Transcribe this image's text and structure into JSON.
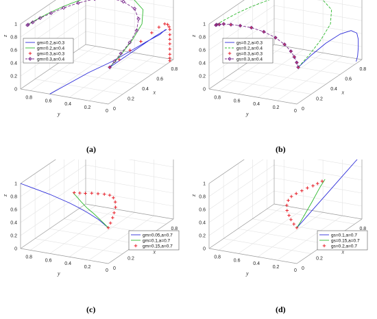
{
  "captions": [
    "(a)",
    "(b)",
    "(c)",
    "(d)"
  ],
  "chart_data": [
    {
      "type": "line3d",
      "panel": "a",
      "xlabel": "x",
      "ylabel": "y",
      "zlabel": "z",
      "xticks": [
        "0",
        "0.2",
        "0.4",
        "0.6",
        "0.8"
      ],
      "yticks": [
        "0",
        "0.2",
        "0.4",
        "0.6",
        "0.8"
      ],
      "zticks": [
        "0",
        "0.2",
        "0.4",
        "0.6",
        "0.8",
        "1"
      ],
      "xlim": [
        0,
        0.9
      ],
      "ylim": [
        0,
        0.9
      ],
      "zlim": [
        0,
        1
      ],
      "grid": true,
      "legend_position": "upper-left",
      "series": [
        {
          "name": "gm=0.2,a=0.3",
          "color": "#2b2bd9",
          "marker": "none",
          "endpoint": [
            0,
            0.6,
            0
          ],
          "x": [
            0,
            0.4,
            0.6,
            0.7,
            0.8,
            0.85,
            0.85,
            0.82,
            0.76,
            0.65,
            0.5,
            0.35,
            0.2,
            0.1,
            0.02
          ],
          "y": [
            0.6,
            0.5,
            0.4,
            0.3,
            0.2,
            0.1,
            0.05,
            0.01,
            0,
            0,
            0,
            0,
            0,
            0,
            0
          ],
          "z": [
            0,
            0.05,
            0.1,
            0.2,
            0.3,
            0.4,
            0.48,
            0.52,
            0.54,
            0.55,
            0.55,
            0.55,
            0.55,
            0.55,
            0.55
          ]
        },
        {
          "name": "gm=0.2,a=0.4",
          "color": "#2db82d",
          "marker": "none",
          "x": [
            0.02,
            0.2,
            0.4,
            0.6,
            0.75,
            0.82,
            0.8,
            0.7,
            0.55,
            0.4,
            0.25,
            0.12,
            0.03,
            0
          ],
          "y": [
            0,
            0.02,
            0.05,
            0.1,
            0.2,
            0.35,
            0.5,
            0.62,
            0.7,
            0.76,
            0.8,
            0.82,
            0.83,
            0.83
          ],
          "z": [
            0.55,
            0.6,
            0.67,
            0.75,
            0.83,
            0.9,
            0.96,
            0.99,
            1,
            1,
            1,
            1,
            1,
            1
          ]
        },
        {
          "name": "gm=0.3,a=0.3",
          "color": "#e8202a",
          "marker": "plus",
          "x": [
            0.02,
            0.15,
            0.3,
            0.45,
            0.6,
            0.7,
            0.78,
            0.82,
            0.84,
            0.85,
            0.85,
            0.85,
            0.85,
            0.85,
            0.85,
            0.85,
            0.85
          ],
          "y": [
            0,
            0,
            0,
            0,
            0,
            0,
            0,
            0,
            0,
            0,
            0,
            0,
            0,
            0,
            0,
            0,
            0
          ],
          "z": [
            0.55,
            0.57,
            0.6,
            0.62,
            0.64,
            0.65,
            0.64,
            0.6,
            0.55,
            0.5,
            0.42,
            0.35,
            0.28,
            0.2,
            0.12,
            0.06,
            0.02
          ]
        },
        {
          "name": "gm=0.3,a=0.4",
          "color": "#7a2a8c",
          "marker": "diamond",
          "dashed": true,
          "x": [
            0.02,
            0.1,
            0.2,
            0.35,
            0.5,
            0.62,
            0.7,
            0.72,
            0.7,
            0.62,
            0.5,
            0.38,
            0.26,
            0.15,
            0.06,
            0.01,
            0
          ],
          "y": [
            0,
            0.01,
            0.02,
            0.04,
            0.08,
            0.15,
            0.25,
            0.38,
            0.5,
            0.6,
            0.68,
            0.74,
            0.78,
            0.81,
            0.82,
            0.83,
            0.83
          ],
          "z": [
            0.55,
            0.58,
            0.62,
            0.67,
            0.73,
            0.8,
            0.87,
            0.93,
            0.97,
            0.99,
            1,
            1,
            1,
            1,
            1,
            1,
            1
          ]
        }
      ]
    },
    {
      "type": "line3d",
      "panel": "b",
      "xlabel": "x",
      "ylabel": "y",
      "zlabel": "z",
      "xticks": [
        "0",
        "0.2",
        "0.4",
        "0.6",
        "0.8"
      ],
      "yticks": [
        "0",
        "0.2",
        "0.4",
        "0.6",
        "0.8"
      ],
      "zticks": [
        "0",
        "0.2",
        "0.4",
        "0.6",
        "0.8",
        "1"
      ],
      "xlim": [
        0,
        0.9
      ],
      "ylim": [
        0,
        0.9
      ],
      "zlim": [
        0,
        1
      ],
      "grid": true,
      "legend_position": "upper-right",
      "series": [
        {
          "name": "gs=0.2,a=0.3",
          "color": "#2b2bd9",
          "marker": "none",
          "x": [
            0.02,
            0.2,
            0.4,
            0.6,
            0.75,
            0.83,
            0.85,
            0.85,
            0.84,
            0.82
          ],
          "y": [
            0,
            0,
            0,
            0,
            0,
            0,
            0,
            0,
            0,
            0
          ],
          "z": [
            0.55,
            0.6,
            0.63,
            0.62,
            0.56,
            0.46,
            0.35,
            0.22,
            0.1,
            0.03
          ]
        },
        {
          "name": "gs=0.2,a=0.4",
          "color": "#2db82d",
          "marker": "none",
          "dashed": true,
          "x": [
            0.02,
            0.2,
            0.4,
            0.6,
            0.75,
            0.82,
            0.8,
            0.7,
            0.55,
            0.4,
            0.25,
            0.12,
            0.03,
            0
          ],
          "y": [
            0,
            0.02,
            0.05,
            0.1,
            0.2,
            0.35,
            0.5,
            0.62,
            0.7,
            0.76,
            0.8,
            0.82,
            0.83,
            0.83
          ],
          "z": [
            0.55,
            0.6,
            0.67,
            0.75,
            0.83,
            0.9,
            0.96,
            0.99,
            1,
            1,
            1,
            1,
            1,
            1
          ]
        },
        {
          "name": "gs=0.3,a=0.3",
          "color": "#e8202a",
          "marker": "plus",
          "x": [
            0.02,
            0.04,
            0.06,
            0.08,
            0.1,
            0.11,
            0.11,
            0.1,
            0.08,
            0.06,
            0.04,
            0.02,
            0.01,
            0
          ],
          "y": [
            0,
            0.03,
            0.07,
            0.12,
            0.2,
            0.3,
            0.42,
            0.54,
            0.64,
            0.72,
            0.78,
            0.81,
            0.83,
            0.83
          ],
          "z": [
            0.55,
            0.6,
            0.66,
            0.72,
            0.79,
            0.86,
            0.92,
            0.96,
            0.98,
            0.99,
            1,
            1,
            1,
            1
          ]
        },
        {
          "name": "gs=0.3,a=0.4",
          "color": "#7a2a8c",
          "marker": "diamond",
          "dashed": true,
          "x": [
            0.02,
            0.04,
            0.06,
            0.08,
            0.1,
            0.11,
            0.11,
            0.1,
            0.08,
            0.06,
            0.04,
            0.02,
            0.01,
            0
          ],
          "y": [
            0,
            0.03,
            0.07,
            0.12,
            0.2,
            0.3,
            0.42,
            0.54,
            0.64,
            0.72,
            0.78,
            0.81,
            0.83,
            0.83
          ],
          "z": [
            0.55,
            0.6,
            0.66,
            0.72,
            0.79,
            0.86,
            0.92,
            0.96,
            0.98,
            0.99,
            1,
            1,
            1,
            1
          ]
        }
      ]
    },
    {
      "type": "line3d",
      "panel": "c",
      "xlabel": "x",
      "ylabel": "y",
      "zlabel": "z",
      "xticks": [
        "0",
        "0.2",
        "0.4",
        "0.6",
        "0.8"
      ],
      "yticks": [
        "0",
        "0.2",
        "0.4",
        "0.6",
        "0.8"
      ],
      "zticks": [
        "0",
        "0.2",
        "0.4",
        "0.6",
        "0.8",
        "1"
      ],
      "xlim": [
        0,
        0.9
      ],
      "ylim": [
        0,
        0.9
      ],
      "zlim": [
        0,
        1
      ],
      "grid": true,
      "legend_position": "lower-right",
      "series": [
        {
          "name": "gm=0.05,a=0.7",
          "color": "#2b2bd9",
          "marker": "none",
          "x": [
            0,
            0,
            0,
            0,
            0,
            0,
            0,
            0,
            0,
            0
          ],
          "y": [
            0,
            0.1,
            0.2,
            0.3,
            0.4,
            0.5,
            0.6,
            0.7,
            0.8,
            0.9
          ],
          "z": [
            0.55,
            0.65,
            0.72,
            0.78,
            0.83,
            0.87,
            0.91,
            0.94,
            0.97,
            1
          ]
        },
        {
          "name": "gm=0.1,a=0.7",
          "color": "#2db82d",
          "marker": "none",
          "x": [
            0,
            0,
            0,
            0,
            0,
            0,
            0,
            0,
            0
          ],
          "y": [
            0,
            0.04,
            0.09,
            0.15,
            0.22,
            0.28,
            0.32,
            0.35,
            0.36
          ],
          "z": [
            0.55,
            0.6,
            0.66,
            0.73,
            0.8,
            0.88,
            0.94,
            0.98,
            1
          ]
        },
        {
          "name": "gm=0.15,a=0.7",
          "color": "#e8202a",
          "marker": "plus",
          "x": [
            0,
            0.03,
            0.06,
            0.08,
            0.1,
            0.11,
            0.11,
            0.1,
            0.08,
            0.06,
            0.04,
            0.02,
            0.01,
            0
          ],
          "y": [
            0,
            0,
            0,
            0,
            0,
            0.01,
            0.03,
            0.06,
            0.1,
            0.15,
            0.2,
            0.25,
            0.3,
            0.35
          ],
          "z": [
            0.55,
            0.6,
            0.66,
            0.72,
            0.79,
            0.86,
            0.92,
            0.96,
            0.98,
            0.99,
            1,
            1,
            1,
            1
          ]
        }
      ]
    },
    {
      "type": "line3d",
      "panel": "d",
      "xlabel": "x",
      "ylabel": "y",
      "zlabel": "z",
      "xticks": [
        "0",
        "0.2",
        "0.4",
        "0.6",
        "0.8"
      ],
      "yticks": [
        "0",
        "0.2",
        "0.4",
        "0.6",
        "0.8"
      ],
      "zticks": [
        "0",
        "0.2",
        "0.4",
        "0.6",
        "0.8",
        "1"
      ],
      "xlim": [
        0,
        0.9
      ],
      "ylim": [
        0,
        0.9
      ],
      "zlim": [
        0,
        1
      ],
      "grid": true,
      "legend_position": "lower-right",
      "series": [
        {
          "name": "gs=0.1,a=0.7",
          "color": "#2b2bd9",
          "marker": "none",
          "x": [
            0,
            0.1,
            0.2,
            0.3,
            0.4,
            0.5,
            0.6,
            0.7,
            0.8,
            0.9
          ],
          "y": [
            0,
            0,
            0,
            0,
            0,
            0,
            0,
            0,
            0,
            0
          ],
          "z": [
            0.55,
            0.6,
            0.65,
            0.7,
            0.75,
            0.8,
            0.85,
            0.9,
            0.95,
            1
          ]
        },
        {
          "name": "gs=0.15,a=0.7",
          "color": "#2db82d",
          "marker": "none",
          "x": [
            0,
            0.05,
            0.1,
            0.16,
            0.22,
            0.28,
            0.33,
            0.37,
            0.39
          ],
          "y": [
            0,
            0,
            0,
            0,
            0,
            0,
            0,
            0,
            0
          ],
          "z": [
            0.55,
            0.6,
            0.66,
            0.73,
            0.8,
            0.88,
            0.94,
            0.98,
            1
          ]
        },
        {
          "name": "gs=0.2,a=0.7",
          "color": "#e8202a",
          "marker": "plus",
          "x": [
            0,
            0,
            0,
            0,
            0,
            0.01,
            0.03,
            0.06,
            0.1,
            0.15,
            0.2,
            0.25,
            0.3,
            0.35
          ],
          "y": [
            0,
            0.03,
            0.06,
            0.08,
            0.1,
            0.11,
            0.11,
            0.1,
            0.08,
            0.06,
            0.04,
            0.02,
            0.01,
            0
          ],
          "z": [
            0.55,
            0.6,
            0.66,
            0.72,
            0.79,
            0.86,
            0.92,
            0.96,
            0.98,
            0.99,
            1,
            1,
            1,
            1
          ]
        }
      ]
    }
  ]
}
